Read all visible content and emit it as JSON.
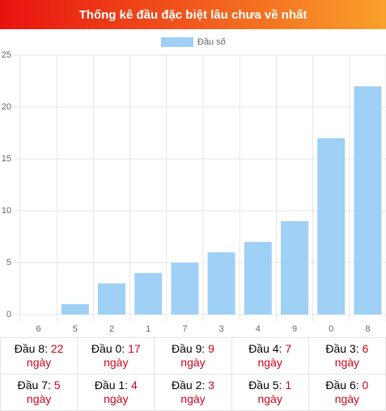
{
  "header": {
    "title": "Thống kê đầu đặc biệt lâu chưa về nhất"
  },
  "chart_data": {
    "type": "bar",
    "legend": "Đầu số",
    "legend_position": "top",
    "color": "#9fd0f5",
    "categories": [
      "6",
      "5",
      "2",
      "1",
      "7",
      "3",
      "4",
      "9",
      "0",
      "8"
    ],
    "values": [
      0,
      1,
      3,
      4,
      5,
      6,
      7,
      9,
      17,
      22
    ],
    "ylim": [
      0,
      25
    ],
    "yticks": [
      0,
      5,
      10,
      15,
      20,
      25
    ],
    "grid": true
  },
  "table": {
    "unit": "ngày",
    "rows": [
      [
        {
          "label": "Đầu 8:",
          "value": 22
        },
        {
          "label": "Đầu 0:",
          "value": 17
        },
        {
          "label": "Đầu 9:",
          "value": 9
        },
        {
          "label": "Đầu 4:",
          "value": 7
        },
        {
          "label": "Đầu 3:",
          "value": 6
        }
      ],
      [
        {
          "label": "Đầu 7:",
          "value": 5
        },
        {
          "label": "Đầu 1:",
          "value": 4
        },
        {
          "label": "Đầu 2:",
          "value": 3
        },
        {
          "label": "Đầu 5:",
          "value": 1
        },
        {
          "label": "Đầu 6:",
          "value": 0
        }
      ]
    ]
  }
}
